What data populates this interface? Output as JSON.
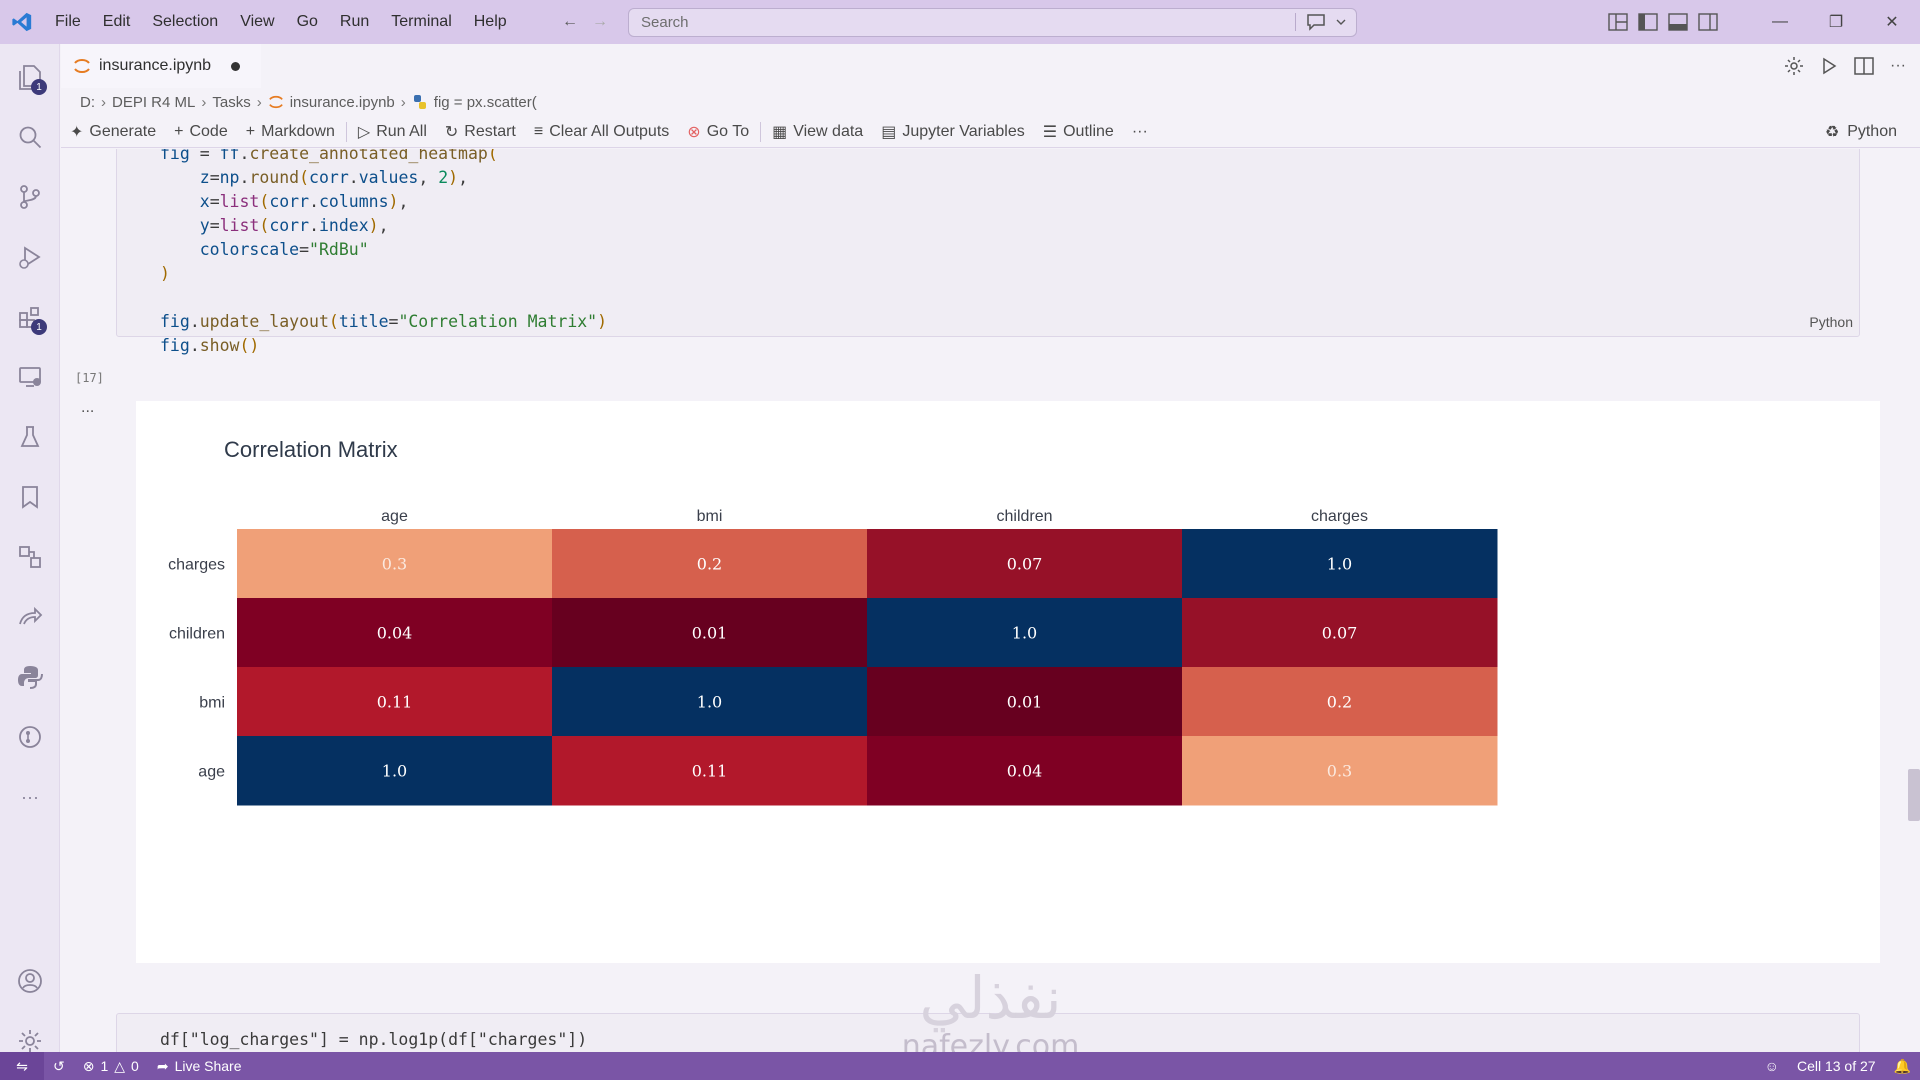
{
  "menu": [
    "File",
    "Edit",
    "Selection",
    "View",
    "Go",
    "Run",
    "Terminal",
    "Help"
  ],
  "search": {
    "placeholder": "Search"
  },
  "tab": {
    "label": "insurance.ipynb"
  },
  "breadcrumb": {
    "drive": "D:",
    "folder1": "DEPI R4 ML",
    "folder2": "Tasks",
    "file": "insurance.ipynb",
    "symbol": "fig = px.scatter("
  },
  "toolbar": {
    "generate": "Generate",
    "code": "Code",
    "markdown": "Markdown",
    "run_all": "Run All",
    "restart": "Restart",
    "clear_outputs": "Clear All Outputs",
    "go_to": "Go To",
    "view_data": "View data",
    "jupyter_vars": "Jupyter Variables",
    "outline": "Outline",
    "more": "···",
    "kernel": "Python"
  },
  "cell17": {
    "exec_count": "[17]",
    "language": "Python"
  },
  "output": {
    "more": "..."
  },
  "next_cell": {
    "code": "df[\"log_charges\"] = np.log1p(df[\"charges\"])"
  },
  "watermark": {
    "arabic": "نفذلي",
    "latin": "nafezly.com"
  },
  "status": {
    "errors": "1",
    "warnings": "0",
    "live_share": "Live Share",
    "cell_position": "Cell 13 of 27"
  },
  "activity_badges": {
    "explorer": "1",
    "extensions": "1"
  },
  "colors": {
    "titlebar": "#d8c8ea",
    "statusbar": "#7a55a6",
    "accent": "#3d3a7a"
  },
  "chart_data": {
    "type": "heatmap",
    "title": "Correlation Matrix",
    "x": [
      "age",
      "bmi",
      "children",
      "charges"
    ],
    "y": [
      "charges",
      "children",
      "bmi",
      "age"
    ],
    "z": [
      [
        0.3,
        0.2,
        0.07,
        1.0
      ],
      [
        0.04,
        0.01,
        1.0,
        0.07
      ],
      [
        0.11,
        1.0,
        0.01,
        0.2
      ],
      [
        1.0,
        0.11,
        0.04,
        0.3
      ]
    ],
    "annotations": [
      [
        "0.3",
        "0.2",
        "0.07",
        "1.0"
      ],
      [
        "0.04",
        "0.01",
        "1.0",
        "0.07"
      ],
      [
        "0.11",
        "1.0",
        "0.01",
        "0.2"
      ],
      [
        "1.0",
        "0.11",
        "0.04",
        "0.3"
      ]
    ],
    "colorscale": "RdBu",
    "x_axis_side": "top"
  }
}
